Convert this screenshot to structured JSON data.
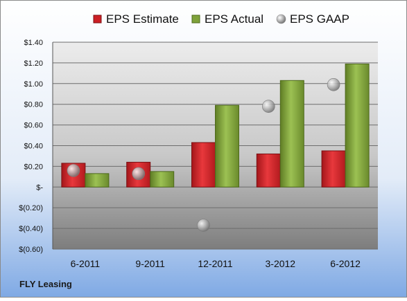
{
  "chart_data": {
    "type": "bar",
    "company": "FLY Leasing",
    "categories": [
      "6-2011",
      "9-2011",
      "12-2011",
      "3-2012",
      "6-2012"
    ],
    "series": [
      {
        "name": "EPS Estimate",
        "kind": "bar",
        "color": "#cc1f24",
        "values": [
          0.23,
          0.24,
          0.43,
          0.32,
          0.35
        ]
      },
      {
        "name": "EPS Actual",
        "kind": "bar",
        "color": "#7fa23a",
        "values": [
          0.13,
          0.15,
          0.79,
          1.03,
          1.19
        ]
      },
      {
        "name": "EPS GAAP",
        "kind": "point",
        "color": "#a6a6a6",
        "values": [
          0.16,
          0.13,
          -0.37,
          0.78,
          0.99
        ]
      }
    ],
    "ylim": [
      -0.6,
      1.4
    ],
    "yticks": [
      1.4,
      1.2,
      1.0,
      0.8,
      0.6,
      0.4,
      0.2,
      0,
      -0.2,
      -0.4,
      -0.6
    ],
    "ytick_labels": [
      "$1.40",
      "$1.20",
      "$1.00",
      "$0.80",
      "$0.60",
      "$0.40",
      "$0.20",
      "$-",
      "$(0.20)",
      "$(0.40)",
      "$(0.60)"
    ],
    "legend_position": "top",
    "grid": true
  }
}
